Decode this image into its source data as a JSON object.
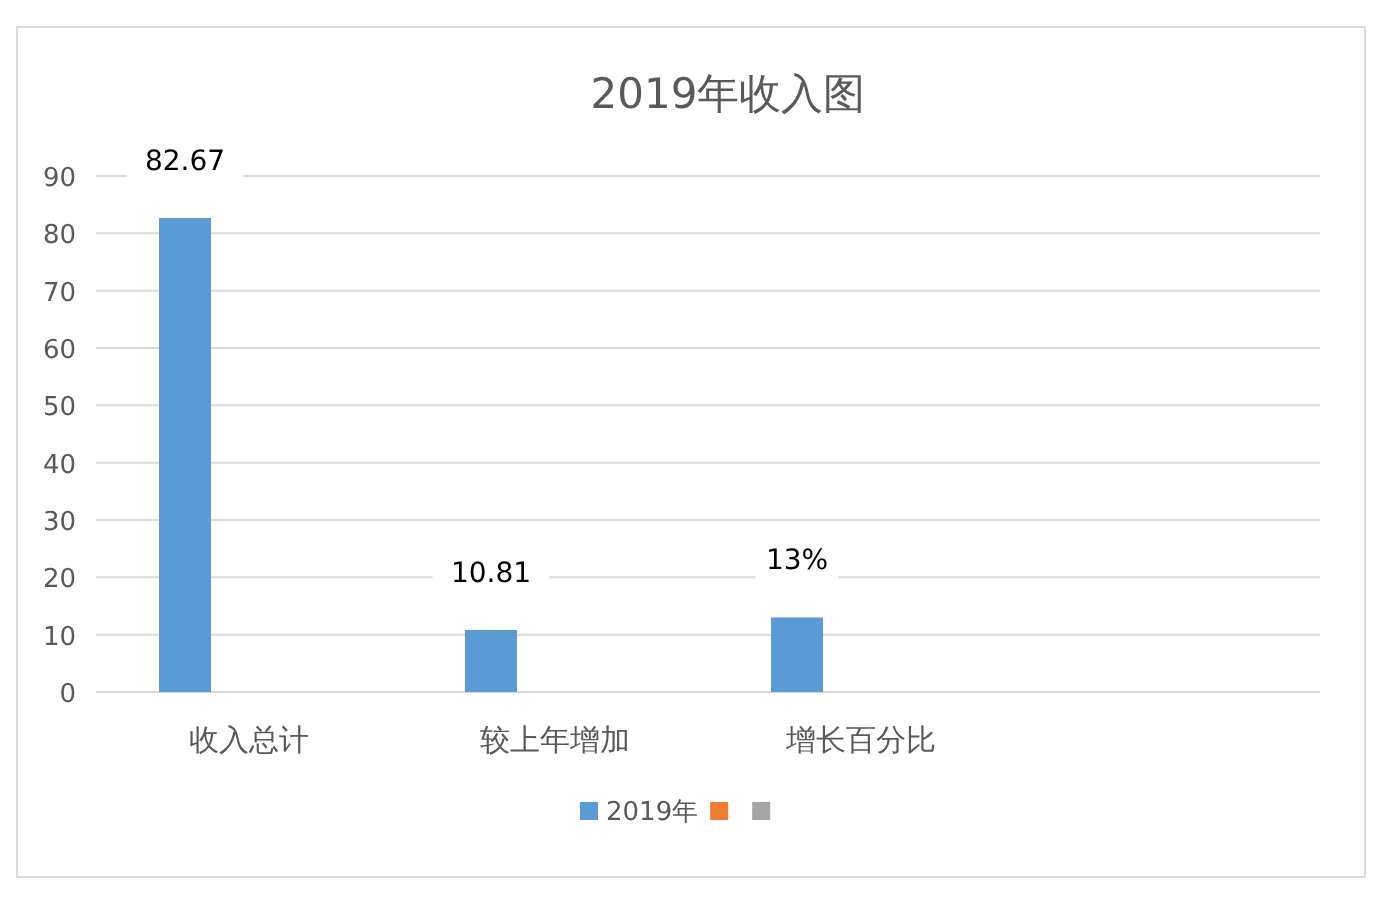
{
  "chart_data": {
    "type": "bar",
    "title": "2019年收入图",
    "categories": [
      "收入总计",
      "较上年增加",
      "增长百分比",
      null
    ],
    "series": [
      {
        "name": "2019年",
        "color": "#5b9bd5",
        "values": [
          82.67,
          10.81,
          13,
          null
        ],
        "value_labels": [
          "82.67",
          "10.81",
          "13%",
          null
        ]
      },
      {
        "color": "#ed7d31",
        "values": [
          null,
          null,
          null,
          null
        ]
      },
      {
        "color": "#a5a5a5",
        "values": [
          null,
          null,
          null,
          null
        ]
      }
    ],
    "ylim": [
      0,
      90
    ],
    "yticks": [
      0,
      10,
      20,
      30,
      40,
      50,
      60,
      70,
      80,
      90
    ],
    "grid": "y",
    "legend": "bottom"
  }
}
